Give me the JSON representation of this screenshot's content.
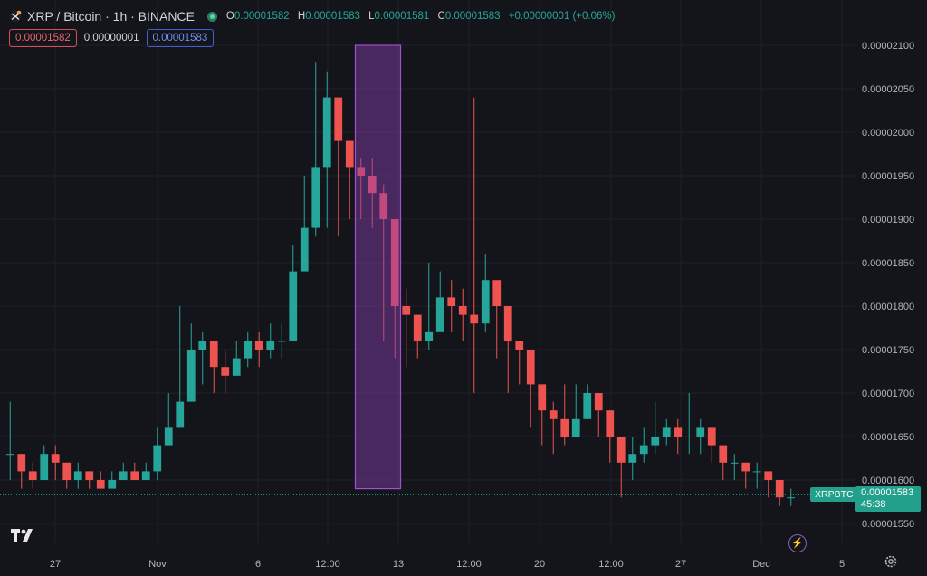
{
  "header": {
    "title": "XRP / Bitcoin · 1h · BINANCE",
    "open_label": "O",
    "open": "0.00001582",
    "high_label": "H",
    "high": "0.00001583",
    "low_label": "L",
    "low": "0.00001581",
    "close_label": "C",
    "close": "0.00001583",
    "change": "+0.00000001 (+0.06%)"
  },
  "trade": {
    "sell_price": "0.00001582",
    "spread": "0.00000001",
    "buy_price": "0.00001583"
  },
  "price_tag": {
    "symbol": "XRPBTC",
    "price": "0.00001583",
    "countdown": "45:38"
  },
  "colors": {
    "up": "#26a69a",
    "down": "#ef5350",
    "highlight": "#8a3fb3",
    "last_price": "#22a08b"
  },
  "icons": [
    "xrp-logo-icon",
    "live-status-icon",
    "tradingview-logo-icon",
    "lightning-icon",
    "settings-gear-icon"
  ],
  "chart_data": {
    "type": "candlestick",
    "title": "XRP / Bitcoin · 1h · BINANCE",
    "xlabel": "",
    "ylabel": "",
    "ylim": [
      1.53e-05,
      2.12e-05
    ],
    "y_ticks": [
      "0.00002100",
      "0.00002050",
      "0.00002000",
      "0.00001950",
      "0.00001900",
      "0.00001850",
      "0.00001800",
      "0.00001750",
      "0.00001700",
      "0.00001650",
      "0.00001600",
      "0.00001550"
    ],
    "x_ticks": [
      "27",
      "Nov",
      "6",
      "12:00",
      "13",
      "12:00",
      "20",
      "12:00",
      "27",
      "Dec",
      "5"
    ],
    "grid": true,
    "last_price": 1.583e-05,
    "highlight_region": {
      "from_index": 31,
      "to_index": 34,
      "y_range": [
        1.59e-05,
        2.1e-05
      ]
    },
    "series_path_step": 1,
    "closes": [
      1.63e-05,
      1.61e-05,
      1.6e-05,
      1.63e-05,
      1.62e-05,
      1.6e-05,
      1.61e-05,
      1.6e-05,
      1.59e-05,
      1.6e-05,
      1.61e-05,
      1.6e-05,
      1.61e-05,
      1.64e-05,
      1.66e-05,
      1.69e-05,
      1.75e-05,
      1.76e-05,
      1.73e-05,
      1.72e-05,
      1.74e-05,
      1.76e-05,
      1.75e-05,
      1.76e-05,
      1.76e-05,
      1.84e-05,
      1.89e-05,
      1.96e-05,
      2.04e-05,
      1.99e-05,
      1.96e-05,
      1.95e-05,
      1.93e-05,
      1.9e-05,
      1.8e-05,
      1.79e-05,
      1.76e-05,
      1.77e-05,
      1.81e-05,
      1.8e-05,
      1.79e-05,
      1.78e-05,
      1.83e-05,
      1.8e-05,
      1.76e-05,
      1.75e-05,
      1.71e-05,
      1.68e-05,
      1.67e-05,
      1.65e-05,
      1.67e-05,
      1.7e-05,
      1.68e-05,
      1.65e-05,
      1.62e-05,
      1.63e-05,
      1.64e-05,
      1.65e-05,
      1.66e-05,
      1.65e-05,
      1.65e-05,
      1.66e-05,
      1.64e-05,
      1.62e-05,
      1.62e-05,
      1.61e-05,
      1.61e-05,
      1.6e-05,
      1.58e-05,
      1.58e-05
    ],
    "highs": [
      1.69e-05,
      1.63e-05,
      1.62e-05,
      1.64e-05,
      1.64e-05,
      1.62e-05,
      1.62e-05,
      1.61e-05,
      1.61e-05,
      1.61e-05,
      1.62e-05,
      1.62e-05,
      1.62e-05,
      1.66e-05,
      1.7e-05,
      1.8e-05,
      1.78e-05,
      1.77e-05,
      1.76e-05,
      1.75e-05,
      1.76e-05,
      1.77e-05,
      1.77e-05,
      1.78e-05,
      1.78e-05,
      1.87e-05,
      1.95e-05,
      2.08e-05,
      2.07e-05,
      2.01e-05,
      1.99e-05,
      1.97e-05,
      1.97e-05,
      1.94e-05,
      1.9e-05,
      1.82e-05,
      1.78e-05,
      1.85e-05,
      1.84e-05,
      1.83e-05,
      1.82e-05,
      2.04e-05,
      1.86e-05,
      1.82e-05,
      1.78e-05,
      1.76e-05,
      1.72e-05,
      1.71e-05,
      1.69e-05,
      1.71e-05,
      1.71e-05,
      1.71e-05,
      1.7e-05,
      1.68e-05,
      1.65e-05,
      1.65e-05,
      1.66e-05,
      1.69e-05,
      1.67e-05,
      1.67e-05,
      1.7e-05,
      1.67e-05,
      1.66e-05,
      1.64e-05,
      1.63e-05,
      1.62e-05,
      1.62e-05,
      1.61e-05,
      1.6e-05,
      1.59e-05
    ],
    "lows": [
      1.6e-05,
      1.59e-05,
      1.59e-05,
      1.6e-05,
      1.6e-05,
      1.59e-05,
      1.59e-05,
      1.59e-05,
      1.59e-05,
      1.59e-05,
      1.6e-05,
      1.6e-05,
      1.6e-05,
      1.6e-05,
      1.64e-05,
      1.66e-05,
      1.7e-05,
      1.71e-05,
      1.7e-05,
      1.7e-05,
      1.72e-05,
      1.73e-05,
      1.73e-05,
      1.74e-05,
      1.74e-05,
      1.76e-05,
      1.86e-05,
      1.88e-05,
      1.89e-05,
      1.88e-05,
      1.9e-05,
      1.9e-05,
      1.89e-05,
      1.76e-05,
      1.74e-05,
      1.73e-05,
      1.74e-05,
      1.75e-05,
      1.78e-05,
      1.77e-05,
      1.76e-05,
      1.7e-05,
      1.77e-05,
      1.74e-05,
      1.7e-05,
      1.71e-05,
      1.66e-05,
      1.64e-05,
      1.63e-05,
      1.64e-05,
      1.65e-05,
      1.67e-05,
      1.65e-05,
      1.62e-05,
      1.58e-05,
      1.6e-05,
      1.62e-05,
      1.63e-05,
      1.64e-05,
      1.63e-05,
      1.63e-05,
      1.63e-05,
      1.62e-05,
      1.6e-05,
      1.6e-05,
      1.59e-05,
      1.59e-05,
      1.58e-05,
      1.57e-05,
      1.57e-05
    ]
  }
}
